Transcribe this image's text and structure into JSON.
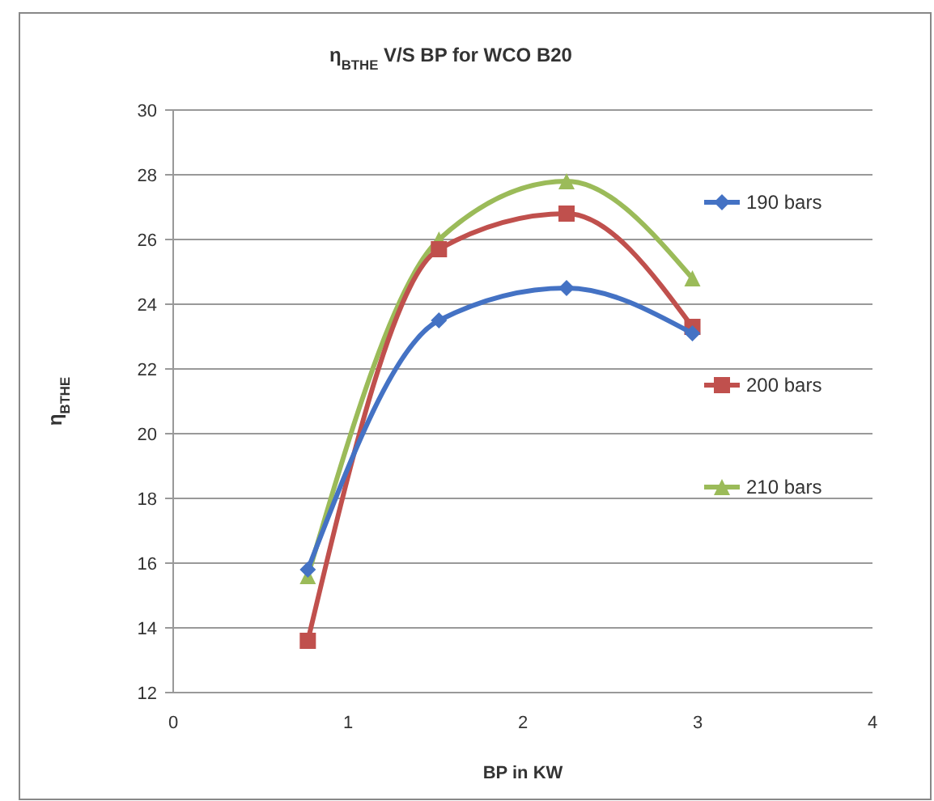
{
  "chart_data": {
    "type": "line",
    "title": "η$_{BTHE}$ V/S BP for WCO  B20",
    "xlabel": "BP in KW",
    "ylabel": "η$_{BTHE}$",
    "xlim": [
      0,
      4
    ],
    "xticks": [
      0,
      1,
      2,
      3,
      4
    ],
    "ylim": [
      12,
      30
    ],
    "yticks": [
      12,
      14,
      16,
      18,
      20,
      22,
      24,
      26,
      28,
      30
    ],
    "grid": "y",
    "legend": "right",
    "series": [
      {
        "name": "190 bars",
        "color": "#4472c4",
        "marker": "diamond",
        "x": [
          0.77,
          1.52,
          2.25,
          2.97
        ],
        "values": [
          15.8,
          23.5,
          24.5,
          23.1
        ]
      },
      {
        "name": "200 bars",
        "color": "#c0504d",
        "marker": "square",
        "x": [
          0.77,
          1.52,
          2.25,
          2.97
        ],
        "values": [
          13.6,
          25.7,
          26.8,
          23.3
        ]
      },
      {
        "name": "210 bars",
        "color": "#9bbb59",
        "marker": "triangle",
        "x": [
          0.77,
          1.52,
          2.25,
          2.97
        ],
        "values": [
          15.6,
          26.0,
          27.8,
          24.8
        ]
      }
    ]
  }
}
